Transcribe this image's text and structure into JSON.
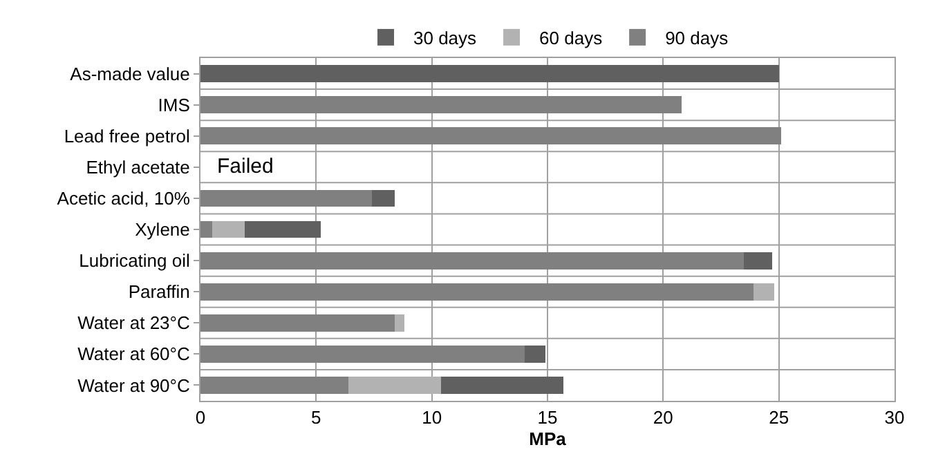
{
  "chart_data": {
    "type": "bar",
    "orientation": "horizontal",
    "stacked": true,
    "xlabel": "MPa",
    "categories": [
      "As-made value",
      "IMS",
      "Lead free petrol",
      "Ethyl acetate",
      "Acetic acid, 10%",
      "Xylene",
      "Lubricating oil",
      "Paraffin",
      "Water at 23°C",
      "Water at 60°C",
      "Water at 90°C"
    ],
    "series": [
      {
        "name": "90 days",
        "color": "#808080",
        "values": [
          null,
          20.8,
          25.1,
          null,
          7.4,
          0.5,
          23.5,
          23.9,
          8.4,
          14.0,
          6.4
        ]
      },
      {
        "name": "60 days",
        "color": "#b2b2b2",
        "values": [
          null,
          null,
          null,
          null,
          null,
          1.4,
          null,
          0.9,
          0.4,
          null,
          4.0
        ]
      },
      {
        "name": "30 days",
        "color": "#606060",
        "values": [
          25.0,
          null,
          null,
          null,
          1.0,
          3.3,
          1.2,
          null,
          null,
          0.9,
          5.3
        ]
      }
    ],
    "xlim": [
      0,
      30
    ],
    "xticks": [
      0,
      5,
      10,
      15,
      20,
      25,
      30
    ],
    "grid": true,
    "legend": "top",
    "annotations": [
      "Failed"
    ]
  }
}
